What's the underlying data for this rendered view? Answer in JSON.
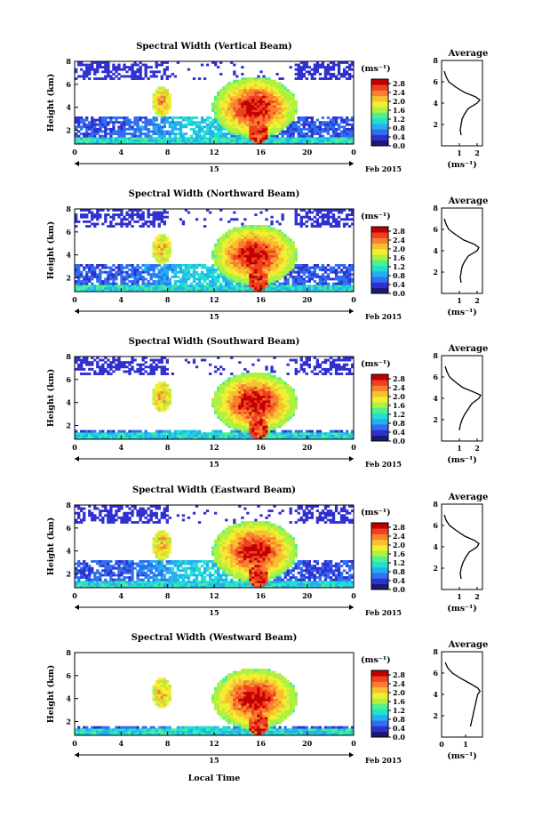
{
  "figure": {
    "date_label": "Feb 2015",
    "x_axis_label": "Local Time",
    "colorbar_unit": "(ms⁻¹)",
    "average_title": "Average",
    "average_xlabel": "(ms⁻¹)"
  },
  "panels": [
    {
      "title": "Spectral Width (Vertical Beam)",
      "ylabel": "Height (km)"
    },
    {
      "title": "Spectral Width (Northward Beam)",
      "ylabel": "Height (km)"
    },
    {
      "title": "Spectral Width (Southward Beam)",
      "ylabel": "Height (km)"
    },
    {
      "title": "Spectral Width (Eastward Beam)",
      "ylabel": "Height (km)"
    },
    {
      "title": "Spectral Width (Westward Beam)",
      "ylabel": "Height (km)"
    }
  ],
  "chart_data": {
    "type": "heatmap",
    "x_ticks": [
      "0",
      "4",
      "8",
      "12",
      "16",
      "20",
      "0"
    ],
    "x_range_hours": [
      0,
      24
    ],
    "day_marker": "15",
    "y_ticks": [
      "2",
      "4",
      "6",
      "8"
    ],
    "y_range_km": [
      0.8,
      8
    ],
    "colorbar_ticks": [
      "2.8",
      "2.4",
      "2.0",
      "1.6",
      "1.2",
      "0.8",
      "0.4",
      "0.0"
    ],
    "colorbar_range": [
      0,
      3.0
    ],
    "colormap": [
      "#1a1a6e",
      "#3030d0",
      "#2f6ff0",
      "#22b0f0",
      "#22e0d0",
      "#50f090",
      "#b0f040",
      "#f0f030",
      "#f8c030",
      "#f88030",
      "#f04020",
      "#c00000"
    ],
    "average_profiles": [
      {
        "beam": "Vertical",
        "x_ticks": [
          "1",
          "2"
        ],
        "y_ticks": [
          "2",
          "4",
          "6",
          "8"
        ],
        "xlim": [
          0,
          2.3
        ],
        "height_km": [
          1.0,
          1.5,
          2.0,
          2.5,
          3.0,
          3.5,
          4.0,
          4.3,
          4.6,
          5.0,
          5.5,
          6.0,
          6.5,
          7.0
        ],
        "width_ms": [
          1.1,
          1.05,
          1.1,
          1.15,
          1.3,
          1.5,
          2.0,
          2.15,
          1.9,
          1.3,
          0.8,
          0.4,
          0.25,
          0.15
        ]
      },
      {
        "beam": "Northward",
        "x_ticks": [
          "1",
          "2"
        ],
        "y_ticks": [
          "2",
          "4",
          "6",
          "8"
        ],
        "xlim": [
          0,
          2.3
        ],
        "height_km": [
          1.0,
          1.5,
          2.0,
          2.5,
          3.0,
          3.5,
          4.0,
          4.3,
          4.6,
          5.0,
          5.5,
          6.0,
          6.5,
          7.0
        ],
        "width_ms": [
          1.1,
          1.05,
          1.1,
          1.15,
          1.3,
          1.5,
          2.0,
          2.1,
          1.85,
          1.25,
          0.8,
          0.4,
          0.25,
          0.15
        ]
      },
      {
        "beam": "Southward",
        "x_ticks": [
          "1",
          "2"
        ],
        "y_ticks": [
          "2",
          "4",
          "6",
          "8"
        ],
        "xlim": [
          0,
          2.3
        ],
        "height_km": [
          1.0,
          1.5,
          2.0,
          2.5,
          3.0,
          3.5,
          4.0,
          4.3,
          4.6,
          5.0,
          5.5,
          6.0,
          6.5,
          7.0
        ],
        "width_ms": [
          1.0,
          1.05,
          1.15,
          1.3,
          1.5,
          1.7,
          2.1,
          2.2,
          1.8,
          1.2,
          0.8,
          0.45,
          0.3,
          0.2
        ]
      },
      {
        "beam": "Eastward",
        "x_ticks": [
          "1",
          "2"
        ],
        "y_ticks": [
          "2",
          "4",
          "6",
          "8"
        ],
        "xlim": [
          0,
          2.3
        ],
        "height_km": [
          1.0,
          1.5,
          2.0,
          2.5,
          3.0,
          3.5,
          4.0,
          4.3,
          4.6,
          5.0,
          5.5,
          6.0,
          6.5,
          7.0
        ],
        "width_ms": [
          1.1,
          1.05,
          1.1,
          1.2,
          1.35,
          1.55,
          2.0,
          2.1,
          1.85,
          1.3,
          0.85,
          0.45,
          0.25,
          0.15
        ]
      },
      {
        "beam": "Westward",
        "x_ticks": [
          "0",
          "1"
        ],
        "y_ticks": [
          "2",
          "4",
          "6",
          "8"
        ],
        "xlim": [
          0,
          1.7
        ],
        "height_km": [
          1.0,
          1.5,
          2.0,
          2.5,
          3.0,
          3.5,
          4.0,
          4.3,
          4.6,
          5.0,
          5.5,
          6.0,
          6.5,
          7.0
        ],
        "width_ms": [
          1.2,
          1.25,
          1.3,
          1.35,
          1.4,
          1.45,
          1.5,
          1.6,
          1.5,
          1.2,
          0.8,
          0.45,
          0.25,
          0.15
        ]
      }
    ]
  }
}
